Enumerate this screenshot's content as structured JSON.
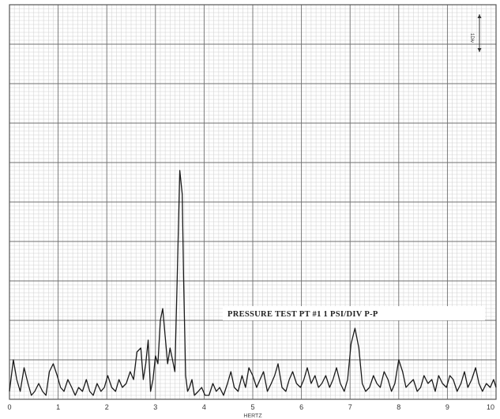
{
  "chart_data": {
    "type": "line",
    "title": "",
    "annotation": "PRESSURE TEST PT #1 1 PSI/DIV P-P",
    "scale_marker_label": "1Div",
    "xlabel": "HERTZ",
    "ylabel": "",
    "xlim": [
      0,
      10
    ],
    "ylim": [
      0,
      10
    ],
    "grid": true,
    "x_ticks": [
      "0",
      "1",
      "2",
      "3",
      "4",
      "5",
      "6",
      "7",
      "8",
      "9",
      "10"
    ],
    "series": [
      {
        "x": [
          0,
          0.08,
          0.15,
          0.22,
          0.3,
          0.38,
          0.45,
          0.52,
          0.6,
          0.68,
          0.75,
          0.82,
          0.9,
          0.98,
          1.05,
          1.12,
          1.2,
          1.28,
          1.35,
          1.42,
          1.5,
          1.58,
          1.65,
          1.72,
          1.8,
          1.88,
          1.95,
          2.02,
          2.1,
          2.18,
          2.25,
          2.32,
          2.4,
          2.48,
          2.55,
          2.62,
          2.7,
          2.75,
          2.8,
          2.85,
          2.9,
          2.95,
          3.0,
          3.05,
          3.1,
          3.15,
          3.2,
          3.25,
          3.3,
          3.35,
          3.4,
          3.45,
          3.5,
          3.55,
          3.58,
          3.62,
          3.66,
          3.7,
          3.75,
          3.8,
          3.88,
          3.95,
          4.02,
          4.1,
          4.18,
          4.25,
          4.32,
          4.4,
          4.48,
          4.55,
          4.62,
          4.7,
          4.78,
          4.85,
          4.92,
          5.0,
          5.08,
          5.15,
          5.22,
          5.3,
          5.38,
          5.45,
          5.52,
          5.6,
          5.68,
          5.75,
          5.82,
          5.9,
          5.98,
          6.05,
          6.12,
          6.2,
          6.28,
          6.35,
          6.42,
          6.5,
          6.58,
          6.65,
          6.72,
          6.8,
          6.88,
          6.95,
          7.02,
          7.1,
          7.18,
          7.25,
          7.32,
          7.4,
          7.48,
          7.55,
          7.62,
          7.7,
          7.78,
          7.85,
          7.92,
          8.0,
          8.08,
          8.15,
          8.22,
          8.3,
          8.38,
          8.45,
          8.52,
          8.6,
          8.68,
          8.75,
          8.82,
          8.9,
          8.98,
          9.05,
          9.12,
          9.2,
          9.28,
          9.35,
          9.42,
          9.5,
          9.58,
          9.65,
          9.72,
          9.8,
          9.88,
          9.95,
          10.0
        ],
        "y": [
          0.2,
          1.0,
          0.5,
          0.2,
          0.8,
          0.4,
          0.1,
          0.2,
          0.4,
          0.2,
          0.1,
          0.7,
          0.9,
          0.6,
          0.3,
          0.2,
          0.5,
          0.3,
          0.1,
          0.3,
          0.2,
          0.5,
          0.2,
          0.1,
          0.4,
          0.2,
          0.3,
          0.6,
          0.3,
          0.2,
          0.5,
          0.3,
          0.4,
          0.7,
          0.5,
          1.2,
          1.3,
          0.5,
          0.9,
          1.5,
          0.2,
          0.5,
          1.1,
          0.9,
          2.0,
          2.3,
          1.6,
          0.9,
          1.3,
          1.0,
          0.7,
          3.2,
          5.8,
          5.2,
          3.0,
          0.6,
          0.2,
          0.3,
          0.5,
          0.1,
          0.2,
          0.3,
          0.1,
          0.1,
          0.4,
          0.2,
          0.3,
          0.1,
          0.4,
          0.7,
          0.3,
          0.2,
          0.6,
          0.3,
          0.8,
          0.6,
          0.3,
          0.5,
          0.7,
          0.2,
          0.4,
          0.6,
          0.9,
          0.3,
          0.2,
          0.5,
          0.7,
          0.4,
          0.3,
          0.5,
          0.8,
          0.4,
          0.6,
          0.3,
          0.4,
          0.6,
          0.3,
          0.5,
          0.8,
          0.4,
          0.2,
          0.5,
          1.4,
          1.8,
          1.3,
          0.4,
          0.2,
          0.3,
          0.6,
          0.4,
          0.3,
          0.7,
          0.5,
          0.2,
          0.4,
          1.0,
          0.7,
          0.3,
          0.4,
          0.5,
          0.2,
          0.3,
          0.6,
          0.4,
          0.5,
          0.2,
          0.6,
          0.4,
          0.3,
          0.6,
          0.5,
          0.2,
          0.4,
          0.7,
          0.3,
          0.5,
          0.8,
          0.4,
          0.2,
          0.4,
          0.3,
          0.5,
          0.3
        ]
      }
    ]
  },
  "colors": {
    "paper": "#ffffff",
    "grid_minor": "#cfcfcf",
    "grid_major": "#6e6e6e",
    "trace": "#1a1a1a"
  }
}
